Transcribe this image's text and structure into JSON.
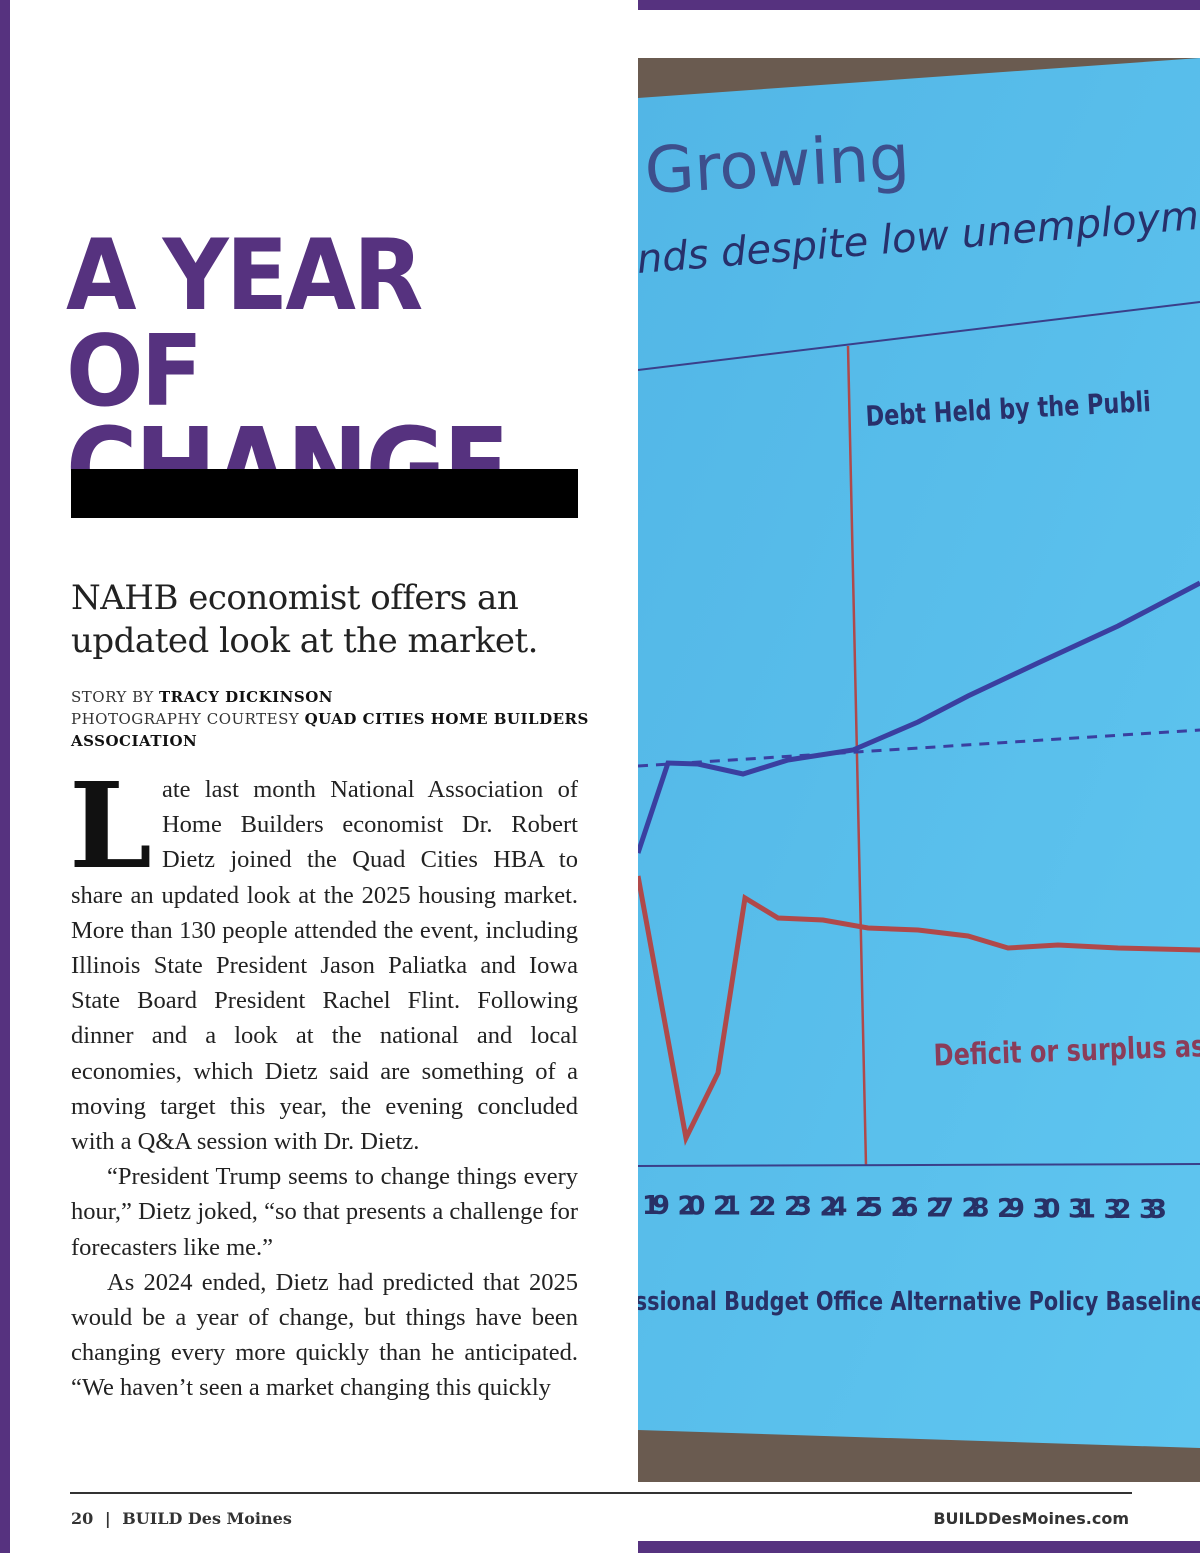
{
  "article": {
    "headline_line1": "A YEAR OF",
    "headline_line2": "CHANGE",
    "dek": "NAHB economist offers an updated look at the market.",
    "byline": {
      "story_prefix": "STORY BY ",
      "story_author": "TRACY DICKINSON",
      "photo_prefix": "PHOTOGRAPHY COURTESY ",
      "photo_credit": "QUAD CITIES HOME BUILDERS ASSOCIATION"
    },
    "drop_cap": "L",
    "paragraphs": [
      "ate last month National Association of Home Builders economist Dr. Robert Dietz joined the Quad Cities HBA to share an updated look at the 2025 housing market. More than 130 people attended the event, including Illinois State President Jason Paliatka and Iowa State Board President Rachel Flint. Following dinner and a look at the national and local economies, which Dietz said are something of a moving target this year, the evening concluded with a Q&A session with Dr. Dietz.",
      "“President Trump seems to change things every hour,” Dietz joked, “so that presents a challenge for forecasters like me.”",
      "As 2024 ended, Dietz had predicted that 2025 would be a year of change, but things have been changing every more quickly than he anticipated. “We haven’t seen a market changing this quickly"
    ]
  },
  "photo": {
    "slide_title": "Growing",
    "slide_subtitle": "nds despite low unemployment",
    "series_debt": "Debt Held by the Publi",
    "series_deficit": "Deficit or surplus as",
    "x_ticks": [
      "19",
      "20",
      "21",
      "22",
      "23",
      "24",
      "25",
      "26",
      "27",
      "28",
      "29",
      "30",
      "31",
      "32",
      "33"
    ],
    "source": "ssional Budget Office Alternative Policy Baseline with Tax I",
    "colors": {
      "background": "#5ec3ee",
      "debt_line": "#3a3fa0",
      "deficit_line": "#b0494a"
    }
  },
  "footer": {
    "page_number": "20",
    "separator": "|",
    "publication": "BUILD Des Moines",
    "website": "BUILDDesMoines.com"
  },
  "colors": {
    "brand_purple": "#56327f"
  }
}
